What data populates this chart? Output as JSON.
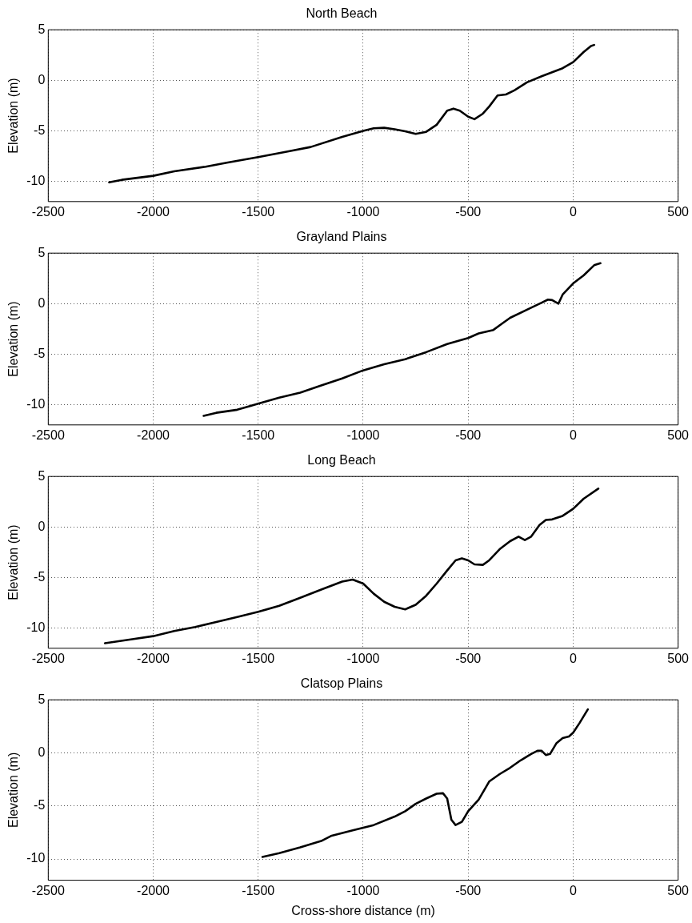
{
  "chart_data": [
    {
      "type": "line",
      "title": "North Beach",
      "ylabel": "Elevation (m)",
      "xlim": [
        -2500,
        500
      ],
      "xticks": [
        -2500,
        -2000,
        -1500,
        -1000,
        -500,
        0,
        500
      ],
      "ylim": [
        -12,
        5
      ],
      "yticks": [
        -10,
        -5,
        0,
        5
      ],
      "grid": true,
      "marker": "none",
      "line_style": "solid",
      "color": "#000000",
      "x": [
        -2210,
        -2150,
        -2000,
        -1900,
        -1750,
        -1650,
        -1500,
        -1350,
        -1250,
        -1100,
        -1000,
        -950,
        -900,
        -850,
        -800,
        -750,
        -700,
        -650,
        -600,
        -570,
        -540,
        -500,
        -470,
        -430,
        -400,
        -360,
        -320,
        -280,
        -220,
        -150,
        -100,
        -50,
        0,
        50,
        85,
        100
      ],
      "values": [
        -10.1,
        -9.85,
        -9.45,
        -9.0,
        -8.55,
        -8.15,
        -7.6,
        -7.0,
        -6.6,
        -5.6,
        -5.0,
        -4.75,
        -4.7,
        -4.85,
        -5.05,
        -5.3,
        -5.1,
        -4.4,
        -3.0,
        -2.8,
        -3.0,
        -3.6,
        -3.85,
        -3.3,
        -2.6,
        -1.5,
        -1.4,
        -1.0,
        -0.2,
        0.4,
        0.8,
        1.2,
        1.8,
        2.8,
        3.4,
        3.5
      ]
    },
    {
      "type": "line",
      "title": "Grayland Plains",
      "ylabel": "Elevation (m)",
      "xlim": [
        -2500,
        500
      ],
      "xticks": [
        -2500,
        -2000,
        -1500,
        -1000,
        -500,
        0,
        500
      ],
      "ylim": [
        -12,
        5
      ],
      "yticks": [
        -10,
        -5,
        0,
        5
      ],
      "grid": true,
      "marker": "none",
      "line_style": "solid",
      "color": "#000000",
      "x": [
        -1760,
        -1700,
        -1600,
        -1500,
        -1400,
        -1300,
        -1200,
        -1100,
        -1000,
        -900,
        -800,
        -700,
        -600,
        -500,
        -450,
        -380,
        -340,
        -300,
        -200,
        -150,
        -120,
        -100,
        -70,
        -50,
        0,
        50,
        100,
        130
      ],
      "values": [
        -11.1,
        -10.8,
        -10.5,
        -9.9,
        -9.3,
        -8.8,
        -8.1,
        -7.4,
        -6.6,
        -6.0,
        -5.5,
        -4.8,
        -4.0,
        -3.4,
        -2.95,
        -2.6,
        -2.0,
        -1.4,
        -0.4,
        0.1,
        0.4,
        0.35,
        0.0,
        0.9,
        2.0,
        2.8,
        3.8,
        4.0
      ]
    },
    {
      "type": "line",
      "title": "Long Beach",
      "ylabel": "Elevation (m)",
      "xlim": [
        -2500,
        500
      ],
      "xticks": [
        -2500,
        -2000,
        -1500,
        -1000,
        -500,
        0,
        500
      ],
      "ylim": [
        -12,
        5
      ],
      "yticks": [
        -10,
        -5,
        0,
        5
      ],
      "grid": true,
      "marker": "none",
      "line_style": "solid",
      "color": "#000000",
      "x": [
        -2230,
        -2100,
        -2000,
        -1900,
        -1800,
        -1700,
        -1600,
        -1500,
        -1400,
        -1300,
        -1200,
        -1100,
        -1050,
        -1000,
        -950,
        -900,
        -850,
        -800,
        -750,
        -700,
        -650,
        -600,
        -560,
        -530,
        -500,
        -470,
        -430,
        -400,
        -350,
        -300,
        -260,
        -230,
        -200,
        -160,
        -130,
        -100,
        -50,
        0,
        50,
        120
      ],
      "values": [
        -11.5,
        -11.1,
        -10.8,
        -10.3,
        -9.9,
        -9.4,
        -8.9,
        -8.4,
        -7.8,
        -7.0,
        -6.2,
        -5.4,
        -5.2,
        -5.6,
        -6.6,
        -7.4,
        -7.9,
        -8.15,
        -7.7,
        -6.8,
        -5.6,
        -4.3,
        -3.3,
        -3.1,
        -3.3,
        -3.7,
        -3.75,
        -3.3,
        -2.2,
        -1.4,
        -0.95,
        -1.3,
        -0.95,
        0.2,
        0.7,
        0.75,
        1.1,
        1.8,
        2.8,
        3.8
      ]
    },
    {
      "type": "line",
      "title": "Clatsop Plains",
      "xlabel": "Cross-shore distance (m)",
      "ylabel": "Elevation (m)",
      "xlim": [
        -2500,
        500
      ],
      "xticks": [
        -2500,
        -2000,
        -1500,
        -1000,
        -500,
        0,
        500
      ],
      "ylim": [
        -12,
        5
      ],
      "yticks": [
        -10,
        -5,
        0,
        5
      ],
      "grid": true,
      "marker": "none",
      "line_style": "solid",
      "color": "#000000",
      "x": [
        -1480,
        -1400,
        -1300,
        -1200,
        -1150,
        -1050,
        -950,
        -850,
        -800,
        -750,
        -700,
        -650,
        -620,
        -600,
        -580,
        -560,
        -530,
        -500,
        -450,
        -400,
        -350,
        -300,
        -250,
        -200,
        -170,
        -150,
        -130,
        -110,
        -80,
        -50,
        -20,
        0,
        30,
        70
      ],
      "values": [
        -9.8,
        -9.45,
        -8.9,
        -8.3,
        -7.8,
        -7.3,
        -6.8,
        -6.0,
        -5.5,
        -4.8,
        -4.3,
        -3.85,
        -3.8,
        -4.3,
        -6.3,
        -6.8,
        -6.5,
        -5.5,
        -4.4,
        -2.7,
        -2.0,
        -1.4,
        -0.7,
        -0.1,
        0.2,
        0.2,
        -0.2,
        -0.1,
        0.9,
        1.4,
        1.55,
        1.9,
        2.8,
        4.1
      ]
    }
  ]
}
